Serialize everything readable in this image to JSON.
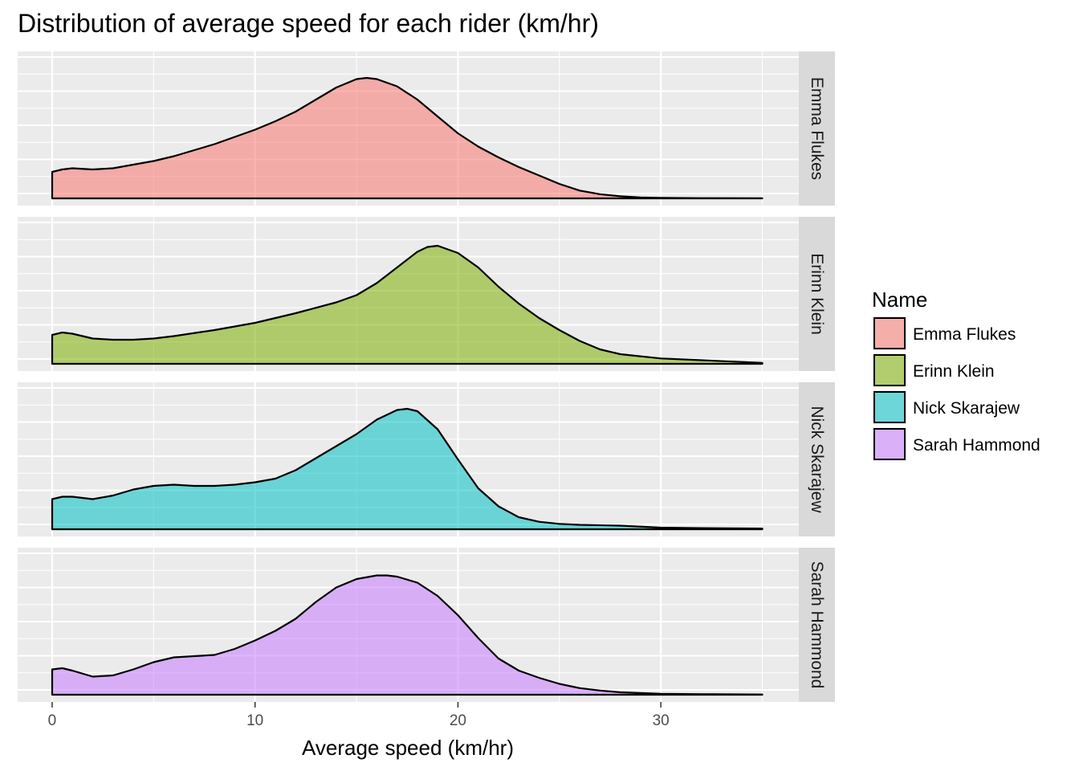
{
  "chart_data": {
    "type": "area",
    "title": "Distribution of average speed for each rider (km/hr)",
    "xlabel": "Average speed (km/hr)",
    "ylabel": "",
    "xlim": [
      -1.7,
      36.8
    ],
    "x_ticks": [
      "0",
      "10",
      "20",
      "30"
    ],
    "x_tick_values": [
      0,
      10,
      20,
      30
    ],
    "grid": true,
    "legend": {
      "title": "Name",
      "position": "right"
    },
    "facet": "rows",
    "series": [
      {
        "name": "Emma Flukes",
        "color": "#F8766D",
        "x": [
          0,
          0.5,
          1,
          2,
          3,
          4,
          5,
          6,
          7,
          8,
          9,
          10,
          11,
          12,
          13,
          14,
          15,
          15.5,
          16,
          17,
          18,
          19,
          20,
          21,
          22,
          23,
          24,
          25,
          26,
          27,
          28,
          29,
          30,
          32,
          35
        ],
        "y": [
          0.22,
          0.24,
          0.25,
          0.24,
          0.25,
          0.28,
          0.31,
          0.35,
          0.4,
          0.45,
          0.51,
          0.57,
          0.64,
          0.72,
          0.82,
          0.92,
          0.99,
          1.0,
          0.99,
          0.93,
          0.82,
          0.68,
          0.54,
          0.43,
          0.34,
          0.26,
          0.19,
          0.12,
          0.065,
          0.035,
          0.017,
          0.008,
          0.004,
          0.002,
          0.001
        ]
      },
      {
        "name": "Erinn Klein",
        "color": "#7CAE00",
        "x": [
          0,
          0.5,
          1,
          2,
          3,
          4,
          5,
          6,
          8,
          10,
          12,
          14,
          15,
          16,
          17,
          18,
          18.5,
          19,
          20,
          21,
          22,
          23,
          24,
          25,
          26,
          27,
          28,
          30,
          32,
          35
        ],
        "y": [
          0.24,
          0.26,
          0.25,
          0.21,
          0.2,
          0.2,
          0.21,
          0.23,
          0.28,
          0.34,
          0.42,
          0.51,
          0.57,
          0.67,
          0.8,
          0.93,
          0.97,
          0.98,
          0.92,
          0.8,
          0.64,
          0.5,
          0.38,
          0.28,
          0.19,
          0.12,
          0.08,
          0.045,
          0.03,
          0.008
        ]
      },
      {
        "name": "Nick Skarajew",
        "color": "#00BFC4",
        "x": [
          0,
          0.5,
          1,
          2,
          3,
          4,
          5,
          6,
          7,
          8,
          9,
          10,
          11,
          12,
          13,
          14,
          15,
          16,
          17,
          17.5,
          18,
          19,
          20,
          21,
          22,
          23,
          24,
          25,
          26,
          28,
          30,
          32,
          35
        ],
        "y": [
          0.25,
          0.27,
          0.27,
          0.25,
          0.28,
          0.33,
          0.36,
          0.37,
          0.36,
          0.36,
          0.37,
          0.39,
          0.42,
          0.49,
          0.59,
          0.69,
          0.79,
          0.91,
          0.99,
          1.0,
          0.98,
          0.83,
          0.58,
          0.34,
          0.19,
          0.1,
          0.062,
          0.045,
          0.037,
          0.03,
          0.013,
          0.009,
          0.006
        ]
      },
      {
        "name": "Sarah Hammond",
        "color": "#C77CFF",
        "x": [
          0,
          0.5,
          1,
          2,
          3,
          4,
          5,
          6,
          7,
          8,
          9,
          10,
          11,
          12,
          13,
          14,
          15,
          16,
          16.5,
          17,
          18,
          19,
          20,
          21,
          22,
          23,
          24,
          25,
          26,
          27,
          28,
          30,
          32,
          35
        ],
        "y": [
          0.21,
          0.22,
          0.2,
          0.15,
          0.16,
          0.21,
          0.27,
          0.31,
          0.32,
          0.33,
          0.38,
          0.45,
          0.53,
          0.63,
          0.77,
          0.89,
          0.96,
          0.99,
          0.99,
          0.98,
          0.93,
          0.82,
          0.66,
          0.47,
          0.3,
          0.2,
          0.14,
          0.09,
          0.055,
          0.035,
          0.02,
          0.008,
          0.005,
          0.002
        ]
      }
    ]
  }
}
